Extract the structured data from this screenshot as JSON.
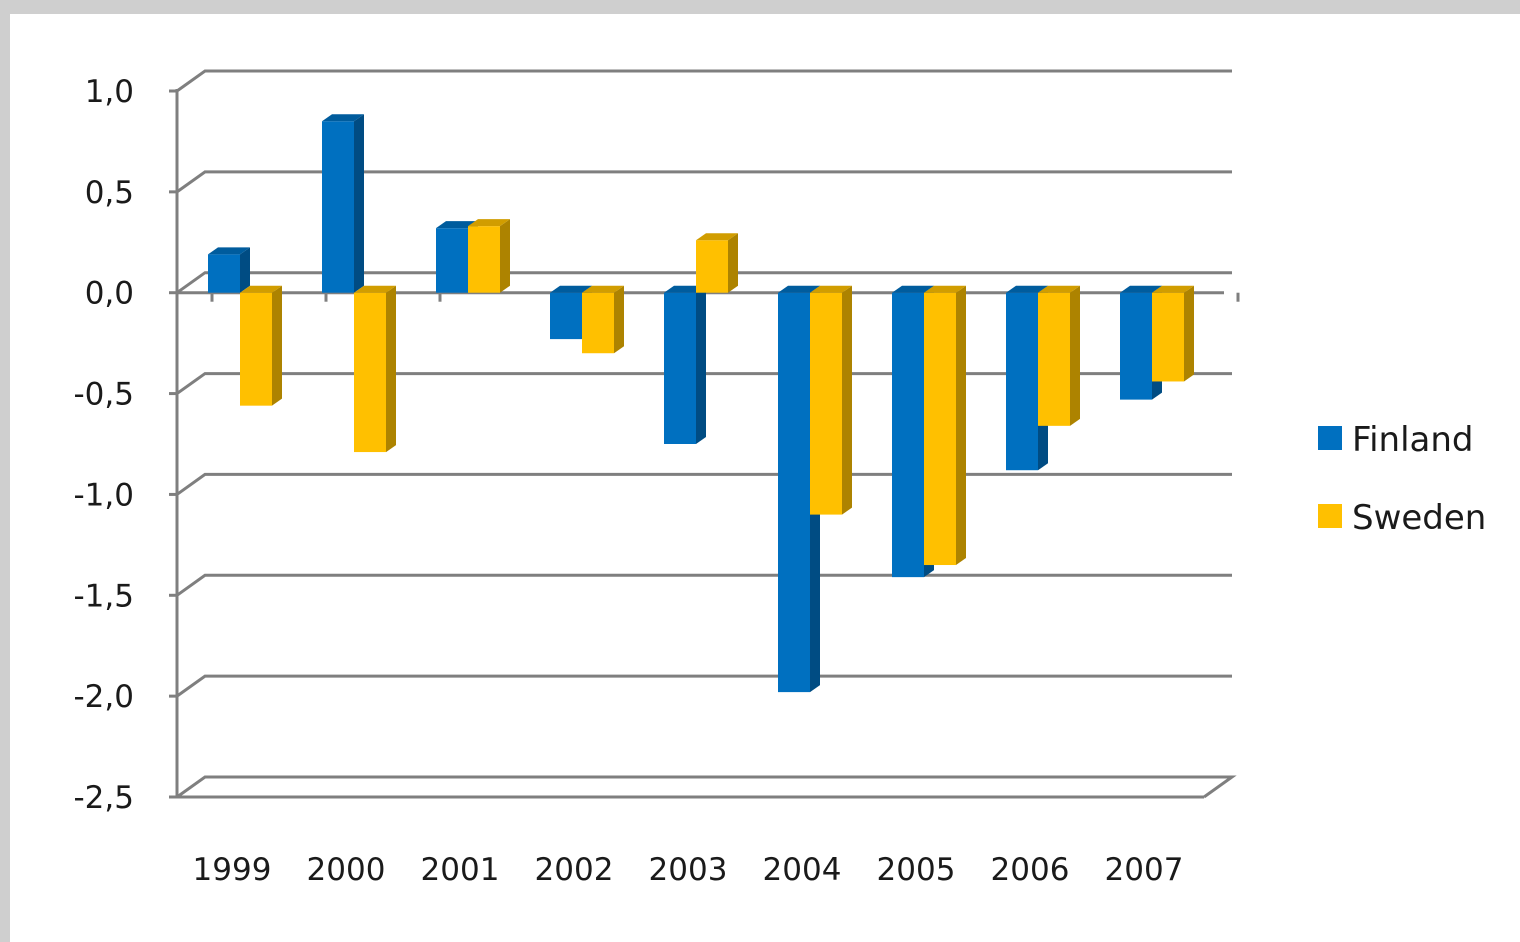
{
  "chart_data": {
    "type": "bar",
    "style": "3d-clustered-column",
    "categories": [
      "1999",
      "2000",
      "2001",
      "2002",
      "2003",
      "2004",
      "2005",
      "2006",
      "2007"
    ],
    "series": [
      {
        "name": "Finland",
        "color": "#0070C0",
        "values": [
          0.19,
          0.85,
          0.32,
          -0.23,
          -0.75,
          -1.98,
          -1.41,
          -0.88,
          -0.53
        ]
      },
      {
        "name": "Sweden",
        "color": "#FFC000",
        "values": [
          -0.56,
          -0.79,
          0.33,
          -0.3,
          0.26,
          -1.1,
          -1.35,
          -0.66,
          -0.44
        ]
      }
    ],
    "y_ticks": [
      "1,0",
      "0,5",
      "0,0",
      "-0,5",
      "-1,0",
      "-1,5",
      "-2,0",
      "-2,5"
    ],
    "ylim": [
      -2.5,
      1.0
    ],
    "y_step": 0.5,
    "grid": true,
    "legend_position": "right",
    "title": "",
    "xlabel": "",
    "ylabel": ""
  }
}
